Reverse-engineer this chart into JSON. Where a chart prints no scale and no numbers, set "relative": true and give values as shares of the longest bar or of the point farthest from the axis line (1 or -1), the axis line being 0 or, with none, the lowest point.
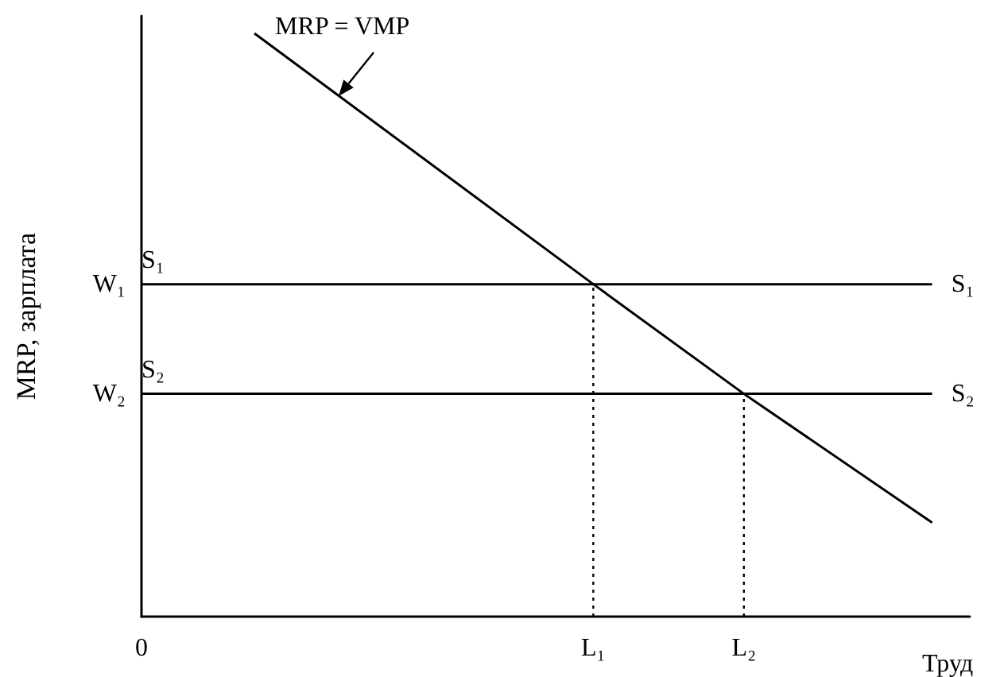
{
  "chart_data": {
    "type": "line",
    "relative": true,
    "ylabel": "MRP, зарплата",
    "xlabel": "Труд",
    "categories": [
      "0",
      null,
      null,
      null,
      null,
      null,
      null,
      null,
      null,
      null,
      null,
      null,
      "L₁",
      null,
      null,
      null,
      "L₂",
      null,
      null,
      null,
      null,
      null,
      null
    ],
    "series": [
      {
        "name": "MRP = VMP",
        "color": "#000000",
        "values": [
          null,
          null,
          null,
          1,
          null,
          null,
          null,
          null,
          null,
          null,
          null,
          null,
          0.57,
          null,
          null,
          null,
          0.382,
          null,
          null,
          null,
          null,
          0.161,
          null
        ]
      },
      {
        "name": "S₁",
        "color": "#000000",
        "values": [
          0.57,
          0.57,
          0.57,
          0.57,
          0.57,
          0.57,
          0.57,
          0.57,
          0.57,
          0.57,
          0.57,
          0.57,
          0.57,
          0.57,
          0.57,
          0.57,
          0.57,
          0.57,
          0.57,
          0.57,
          0.57,
          0.57,
          null
        ]
      },
      {
        "name": "S₂",
        "color": "#000000",
        "values": [
          0.382,
          0.382,
          0.382,
          0.382,
          0.382,
          0.382,
          0.382,
          0.382,
          0.382,
          0.382,
          0.382,
          0.382,
          0.382,
          0.382,
          0.382,
          0.382,
          0.382,
          0.382,
          0.382,
          0.382,
          0.382,
          0.382,
          null
        ]
      }
    ],
    "ref_lines": [
      {
        "axis": "x",
        "value": "L₁",
        "line_style": "dotted",
        "color": "#000000"
      },
      {
        "axis": "x",
        "value": "L₂",
        "line_style": "dotted",
        "color": "#000000"
      }
    ],
    "annotations": [
      "W₁",
      "W₂"
    ],
    "grid": false,
    "marker": "none",
    "line_style": "solid"
  }
}
